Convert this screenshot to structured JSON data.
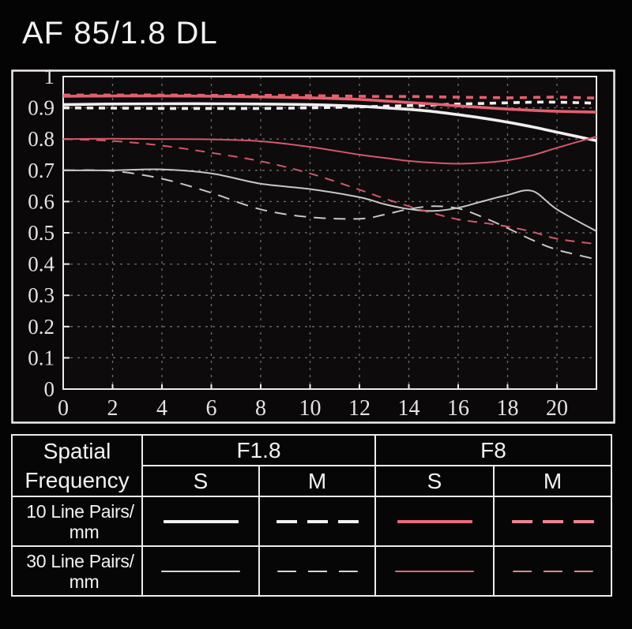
{
  "title": "AF 85/1.8 DL",
  "colors": {
    "background": "#040404",
    "plot_background": "#0e0b0c",
    "border": "#ececec",
    "grid": "#bdbdbd",
    "axis_text": "#e3e3e3",
    "f18_thick": "#f0efef",
    "f18_thin": "#c9c6c6",
    "f8_thick": "#e55f6e",
    "f8_thin": "#d2586a"
  },
  "chart_data": {
    "type": "line",
    "title": "AF 85/1.8 DL",
    "xlabel": "",
    "ylabel": "",
    "xlim": [
      0,
      21.6
    ],
    "ylim": [
      0,
      1
    ],
    "grid": true,
    "x_tick_labels": [
      "0",
      "2",
      "4",
      "6",
      "8",
      "10",
      "12",
      "14",
      "16",
      "18",
      "20"
    ],
    "y_tick_labels": [
      "1",
      "0.9",
      "0.8",
      "0.7",
      "0.6",
      "0.5",
      "0.4",
      "0.3",
      "0.2",
      "0.1",
      "0"
    ],
    "x": [
      0,
      2,
      4,
      6,
      8,
      10,
      12,
      13,
      14,
      15,
      16,
      17,
      18,
      19,
      20,
      21.6
    ],
    "series": [
      {
        "name": "F1.8 10lp S",
        "aperture": "F1.8",
        "frequency": "10 Line Pairs/mm",
        "orientation": "S",
        "color": "#f0efef",
        "width": 3.6,
        "dashed": false,
        "dash_pattern": "",
        "values": [
          0.91,
          0.912,
          0.913,
          0.913,
          0.912,
          0.91,
          0.905,
          0.9,
          0.895,
          0.888,
          0.878,
          0.867,
          0.854,
          0.839,
          0.822,
          0.795
        ]
      },
      {
        "name": "F1.8 10lp M",
        "aperture": "F1.8",
        "frequency": "10 Line Pairs/mm",
        "orientation": "M",
        "color": "#f0efef",
        "width": 3.6,
        "dashed": true,
        "dash_pattern": "8 7",
        "values": [
          0.9,
          0.899,
          0.898,
          0.898,
          0.898,
          0.9,
          0.903,
          0.905,
          0.907,
          0.909,
          0.912,
          0.914,
          0.916,
          0.918,
          0.918,
          0.915
        ]
      },
      {
        "name": "F1.8 30lp S",
        "aperture": "F1.8",
        "frequency": "30 Line Pairs/mm",
        "orientation": "S",
        "color": "#c9c6c6",
        "width": 2,
        "dashed": false,
        "dash_pattern": "",
        "values": [
          0.7,
          0.7,
          0.703,
          0.69,
          0.657,
          0.64,
          0.614,
          0.592,
          0.576,
          0.57,
          0.58,
          0.601,
          0.621,
          0.634,
          0.575,
          0.505
        ]
      },
      {
        "name": "F1.8 30lp M",
        "aperture": "F1.8",
        "frequency": "30 Line Pairs/mm",
        "orientation": "M",
        "color": "#c9c6c6",
        "width": 2,
        "dashed": true,
        "dash_pattern": "15 10",
        "values": [
          0.7,
          0.698,
          0.673,
          0.628,
          0.575,
          0.55,
          0.545,
          0.558,
          0.576,
          0.585,
          0.578,
          0.55,
          0.515,
          0.477,
          0.446,
          0.415
        ]
      },
      {
        "name": "F8 10lp S",
        "aperture": "F8",
        "frequency": "10 Line Pairs/mm",
        "orientation": "S",
        "color": "#e55f6e",
        "width": 3.6,
        "dashed": false,
        "dash_pattern": "",
        "values": [
          0.937,
          0.938,
          0.938,
          0.937,
          0.935,
          0.932,
          0.927,
          0.922,
          0.917,
          0.912,
          0.906,
          0.901,
          0.896,
          0.892,
          0.889,
          0.886
        ]
      },
      {
        "name": "F8 10lp M",
        "aperture": "F8",
        "frequency": "10 Line Pairs/mm",
        "orientation": "M",
        "color": "#e55f6e",
        "width": 3.6,
        "dashed": true,
        "dash_pattern": "9 8",
        "values": [
          0.941,
          0.941,
          0.941,
          0.94,
          0.94,
          0.939,
          0.937,
          0.936,
          0.936,
          0.935,
          0.934,
          0.933,
          0.932,
          0.933,
          0.934,
          0.931
        ]
      },
      {
        "name": "F8 30lp S",
        "aperture": "F8",
        "frequency": "30 Line Pairs/mm",
        "orientation": "S",
        "color": "#d2586a",
        "width": 2,
        "dashed": false,
        "dash_pattern": "",
        "values": [
          0.8,
          0.801,
          0.8,
          0.799,
          0.793,
          0.775,
          0.75,
          0.74,
          0.73,
          0.724,
          0.721,
          0.724,
          0.732,
          0.748,
          0.772,
          0.808
        ]
      },
      {
        "name": "F8 30lp M",
        "aperture": "F8",
        "frequency": "30 Line Pairs/mm",
        "orientation": "M",
        "color": "#d2586a",
        "width": 2,
        "dashed": true,
        "dash_pattern": "12 9",
        "values": [
          0.8,
          0.794,
          0.779,
          0.756,
          0.729,
          0.69,
          0.638,
          0.61,
          0.585,
          0.562,
          0.543,
          0.532,
          0.52,
          0.503,
          0.481,
          0.464
        ]
      }
    ]
  },
  "legend_table": {
    "corner": [
      "Spatial",
      "Frequency"
    ],
    "groups": [
      "F1.8",
      "F8"
    ],
    "subcols": [
      "S",
      "M"
    ],
    "rows": [
      {
        "label_line1": "10 Line Pairs/",
        "label_line2": "mm",
        "samples": [
          {
            "color": "#f2f1f1",
            "dashed": false,
            "thick": true
          },
          {
            "color": "#f2f1f1",
            "dashed": true,
            "thick": true
          },
          {
            "color": "#e86a76",
            "dashed": false,
            "thick": true
          },
          {
            "color": "#ee8491",
            "dashed": true,
            "thick": true
          }
        ]
      },
      {
        "label_line1": "30 Line Pairs/",
        "label_line2": "mm",
        "samples": [
          {
            "color": "#d8d5d5",
            "dashed": false,
            "thick": false
          },
          {
            "color": "#d8d5d5",
            "dashed": true,
            "thick": false
          },
          {
            "color": "#e06a79",
            "dashed": false,
            "thick": false
          },
          {
            "color": "#e58492",
            "dashed": true,
            "thick": false
          }
        ]
      }
    ]
  }
}
